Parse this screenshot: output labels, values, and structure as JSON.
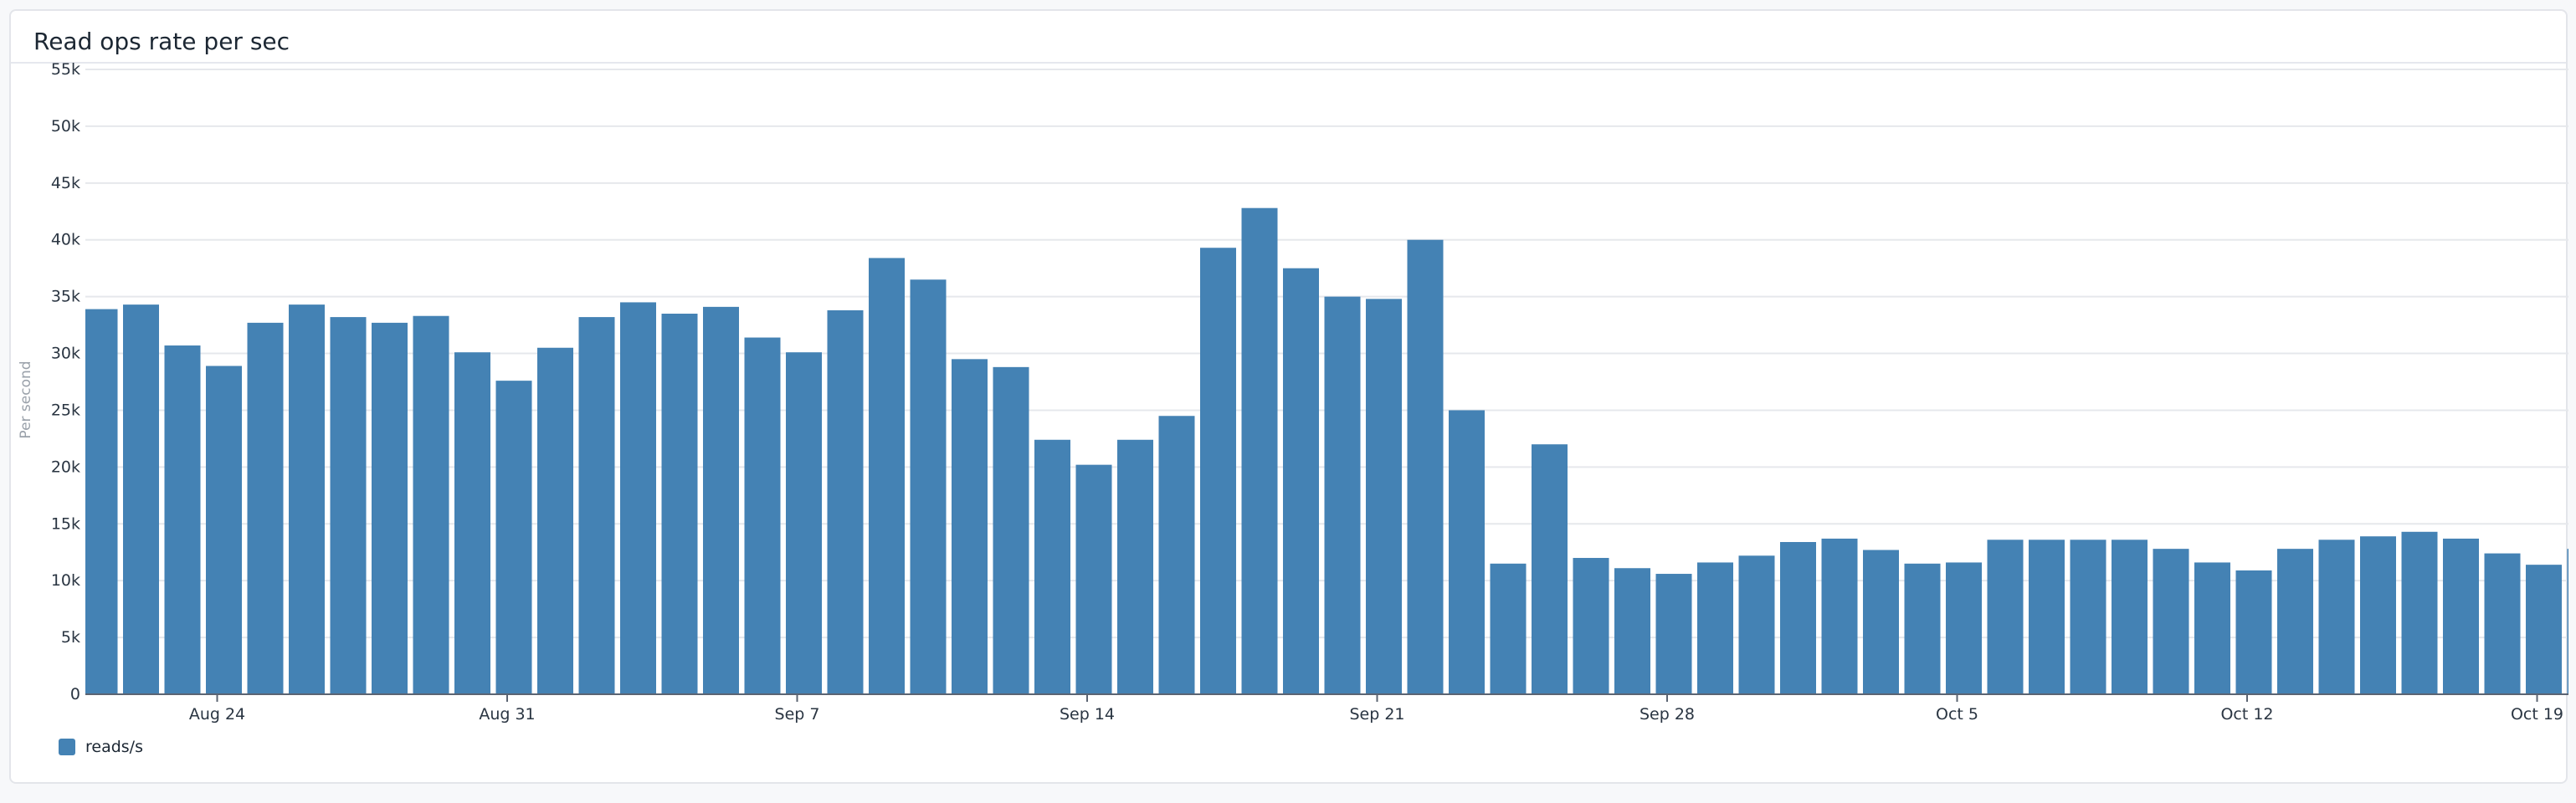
{
  "panel": {
    "title": "Read ops rate per sec"
  },
  "chart_data": {
    "type": "bar",
    "title": "Read ops rate per sec",
    "xlabel": "",
    "ylabel": "Per second",
    "ylim": [
      0,
      55000
    ],
    "yticks": [
      "0",
      "5k",
      "10k",
      "15k",
      "20k",
      "25k",
      "30k",
      "35k",
      "40k",
      "45k",
      "50k",
      "55k"
    ],
    "xticks": [
      {
        "label": "Aug 24",
        "date": "Aug 24"
      },
      {
        "label": "Aug 31",
        "date": "Aug 31"
      },
      {
        "label": "Sep 7",
        "date": "Sep 7"
      },
      {
        "label": "Sep 14",
        "date": "Sep 14"
      },
      {
        "label": "Sep 21",
        "date": "Sep 21"
      },
      {
        "label": "Sep 28",
        "date": "Sep 28"
      },
      {
        "label": "Oct 5",
        "date": "Oct 5"
      },
      {
        "label": "Oct 12",
        "date": "Oct 12"
      },
      {
        "label": "Oct 19",
        "date": "Oct 19"
      }
    ],
    "grid": true,
    "legend_position": "bottom-left",
    "color": "#4482b4",
    "categories": [
      "Aug 21",
      "Aug 22",
      "Aug 23",
      "Aug 24",
      "Aug 25",
      "Aug 26",
      "Aug 27",
      "Aug 28",
      "Aug 29",
      "Aug 30",
      "Aug 31",
      "Sep 1",
      "Sep 2",
      "Sep 3",
      "Sep 4",
      "Sep 5",
      "Sep 6",
      "Sep 7",
      "Sep 8",
      "Sep 9",
      "Sep 10",
      "Sep 11",
      "Sep 12",
      "Sep 13",
      "Sep 14",
      "Sep 15",
      "Sep 16",
      "Sep 17",
      "Sep 18",
      "Sep 19",
      "Sep 20",
      "Sep 21",
      "Sep 22",
      "Sep 23",
      "Sep 24",
      "Sep 25",
      "Sep 26",
      "Sep 27",
      "Sep 28",
      "Sep 29",
      "Sep 30",
      "Oct 1",
      "Oct 2",
      "Oct 3",
      "Oct 4",
      "Oct 5",
      "Oct 6",
      "Oct 7",
      "Oct 8",
      "Oct 9",
      "Oct 10",
      "Oct 11",
      "Oct 12",
      "Oct 13",
      "Oct 14",
      "Oct 15",
      "Oct 16",
      "Oct 17",
      "Oct 18",
      "Oct 19",
      "Oct 20"
    ],
    "series": [
      {
        "name": "reads/s",
        "values": [
          33900,
          34300,
          30700,
          28900,
          32700,
          34300,
          33200,
          32700,
          33300,
          30100,
          27600,
          30500,
          33200,
          34500,
          33500,
          34100,
          31400,
          30100,
          33800,
          38400,
          36500,
          29500,
          28800,
          22400,
          20200,
          22400,
          24500,
          39300,
          42800,
          37500,
          35000,
          34800,
          40000,
          25000,
          11500,
          22000,
          12000,
          11100,
          10600,
          11600,
          12200,
          13400,
          13700,
          12700,
          11500,
          11600,
          13600,
          13600,
          13600,
          13600,
          12800,
          11600,
          10900,
          12800,
          13600,
          13900,
          14300,
          13700,
          12400,
          11400,
          12800
        ]
      }
    ]
  },
  "legend": {
    "items": [
      {
        "label": "reads/s",
        "color": "#4482b4"
      }
    ]
  }
}
